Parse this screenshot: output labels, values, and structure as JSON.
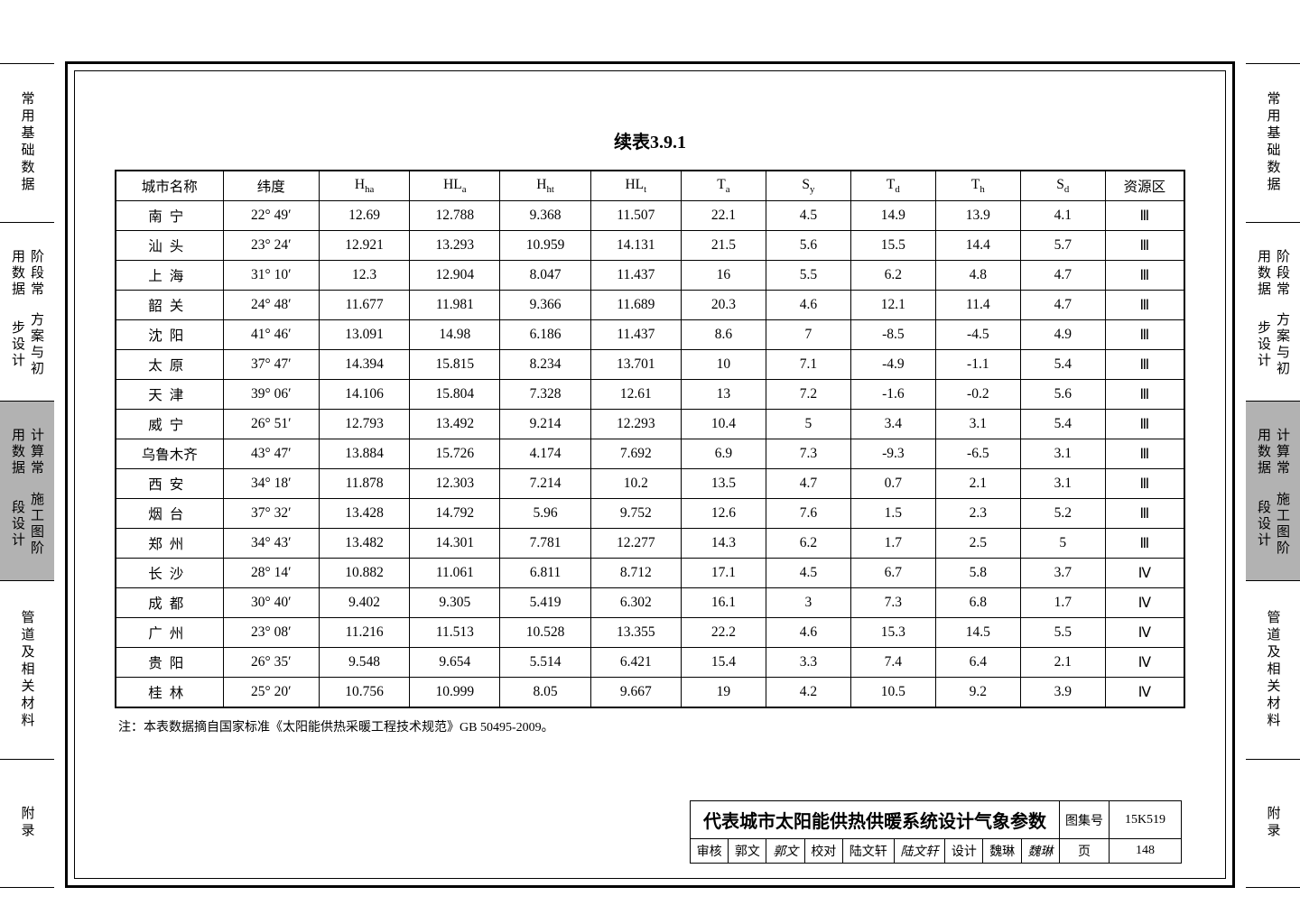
{
  "caption": "续表3.9.1",
  "side_tabs": [
    {
      "label": "常用基础数据",
      "shaded": false
    },
    {
      "label_multi": [
        "方案与初步设计",
        "阶段常用数据"
      ],
      "shaded": false
    },
    {
      "label_multi": [
        "施工图阶段设计",
        "计算常用数据"
      ],
      "shaded": true
    },
    {
      "label": "管道及相关材料",
      "shaded": false
    },
    {
      "label": "附录",
      "shaded": false
    }
  ],
  "columns": [
    "城市名称",
    "纬度",
    "Hha",
    "HLa",
    "Hht",
    "HLt",
    "Ta",
    "Sy",
    "Td",
    "Th",
    "Sd",
    "资源区"
  ],
  "column_has_sub": [
    false,
    false,
    true,
    true,
    true,
    true,
    true,
    true,
    true,
    true,
    true,
    false
  ],
  "col_widths_pct": [
    9.5,
    8.5,
    8,
    8,
    8,
    8,
    7.5,
    7.5,
    7.5,
    7.5,
    7.5,
    7
  ],
  "rows": [
    [
      "南宁",
      "22° 49′",
      "12.69",
      "12.788",
      "9.368",
      "11.507",
      "22.1",
      "4.5",
      "14.9",
      "13.9",
      "4.1",
      "Ⅲ"
    ],
    [
      "汕头",
      "23° 24′",
      "12.921",
      "13.293",
      "10.959",
      "14.131",
      "21.5",
      "5.6",
      "15.5",
      "14.4",
      "5.7",
      "Ⅲ"
    ],
    [
      "上海",
      "31° 10′",
      "12.3",
      "12.904",
      "8.047",
      "11.437",
      "16",
      "5.5",
      "6.2",
      "4.8",
      "4.7",
      "Ⅲ"
    ],
    [
      "韶关",
      "24° 48′",
      "11.677",
      "11.981",
      "9.366",
      "11.689",
      "20.3",
      "4.6",
      "12.1",
      "11.4",
      "4.7",
      "Ⅲ"
    ],
    [
      "沈阳",
      "41° 46′",
      "13.091",
      "14.98",
      "6.186",
      "11.437",
      "8.6",
      "7",
      "-8.5",
      "-4.5",
      "4.9",
      "Ⅲ"
    ],
    [
      "太原",
      "37° 47′",
      "14.394",
      "15.815",
      "8.234",
      "13.701",
      "10",
      "7.1",
      "-4.9",
      "-1.1",
      "5.4",
      "Ⅲ"
    ],
    [
      "天津",
      "39° 06′",
      "14.106",
      "15.804",
      "7.328",
      "12.61",
      "13",
      "7.2",
      "-1.6",
      "-0.2",
      "5.6",
      "Ⅲ"
    ],
    [
      "威宁",
      "26° 51′",
      "12.793",
      "13.492",
      "9.214",
      "12.293",
      "10.4",
      "5",
      "3.4",
      "3.1",
      "5.4",
      "Ⅲ"
    ],
    [
      "乌鲁木齐",
      "43° 47′",
      "13.884",
      "15.726",
      "4.174",
      "7.692",
      "6.9",
      "7.3",
      "-9.3",
      "-6.5",
      "3.1",
      "Ⅲ"
    ],
    [
      "西安",
      "34° 18′",
      "11.878",
      "12.303",
      "7.214",
      "10.2",
      "13.5",
      "4.7",
      "0.7",
      "2.1",
      "3.1",
      "Ⅲ"
    ],
    [
      "烟台",
      "37° 32′",
      "13.428",
      "14.792",
      "5.96",
      "9.752",
      "12.6",
      "7.6",
      "1.5",
      "2.3",
      "5.2",
      "Ⅲ"
    ],
    [
      "郑州",
      "34° 43′",
      "13.482",
      "14.301",
      "7.781",
      "12.277",
      "14.3",
      "6.2",
      "1.7",
      "2.5",
      "5",
      "Ⅲ"
    ],
    [
      "长沙",
      "28° 14′",
      "10.882",
      "11.061",
      "6.811",
      "8.712",
      "17.1",
      "4.5",
      "6.7",
      "5.8",
      "3.7",
      "Ⅳ"
    ],
    [
      "成都",
      "30° 40′",
      "9.402",
      "9.305",
      "5.419",
      "6.302",
      "16.1",
      "3",
      "7.3",
      "6.8",
      "1.7",
      "Ⅳ"
    ],
    [
      "广州",
      "23° 08′",
      "11.216",
      "11.513",
      "10.528",
      "13.355",
      "22.2",
      "4.6",
      "15.3",
      "14.5",
      "5.5",
      "Ⅳ"
    ],
    [
      "贵阳",
      "26° 35′",
      "9.548",
      "9.654",
      "5.514",
      "6.421",
      "15.4",
      "3.3",
      "7.4",
      "6.4",
      "2.1",
      "Ⅳ"
    ],
    [
      "桂林",
      "25° 20′",
      "10.756",
      "10.999",
      "8.05",
      "9.667",
      "19",
      "4.2",
      "10.5",
      "9.2",
      "3.9",
      "Ⅳ"
    ]
  ],
  "note": "注：本表数据摘自国家标准《太阳能供热采暖工程技术规范》GB 50495-2009。",
  "titleblock": {
    "title": "代表城市太阳能供热供暖系统设计气象参数",
    "atlas_label": "图集号",
    "atlas_no": "15K519",
    "page_label": "页",
    "page_no": "148",
    "review_label": "审核",
    "review_name": "郭文",
    "review_sig": "郭文",
    "proof_label": "校对",
    "proof_name": "陆文轩",
    "proof_sig": "陆文轩",
    "design_label": "设计",
    "design_name": "魏琳",
    "design_sig": "魏琳"
  },
  "style": {
    "font_family": "SimSun",
    "border_color": "#000000",
    "background": "#ffffff",
    "shaded_tab_bg": "#b2b2b2"
  }
}
